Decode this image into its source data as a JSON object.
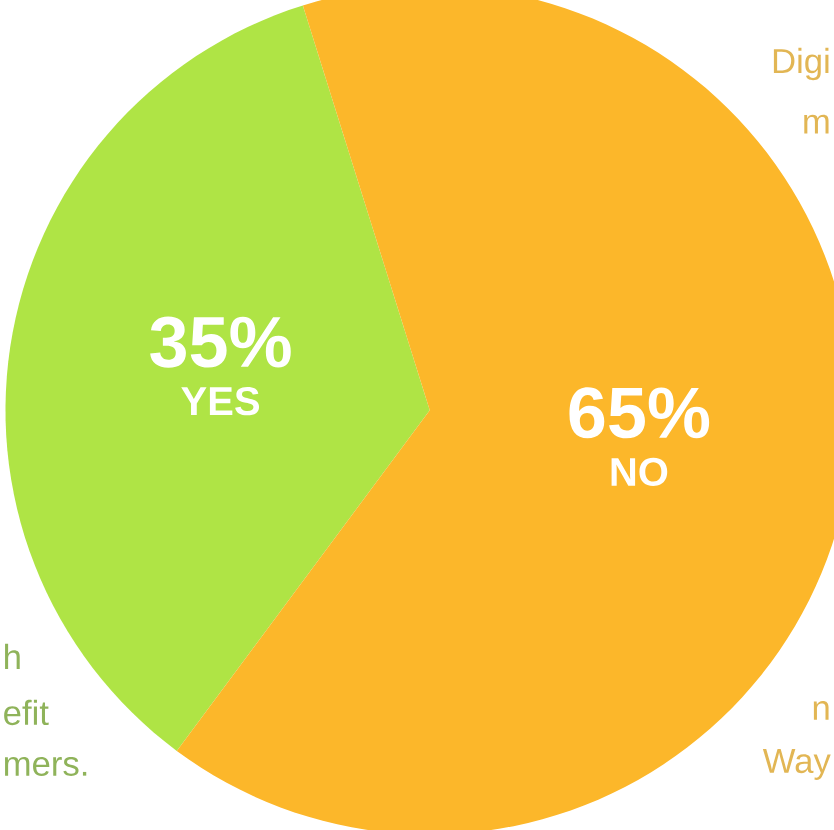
{
  "chart_data": {
    "type": "pie",
    "categories": [
      "YES",
      "NO"
    ],
    "values": [
      35,
      65
    ],
    "colors": [
      "#afe445",
      "#fcb72a"
    ],
    "value_labels": [
      "35%",
      "65%"
    ],
    "annotations": [
      "Digi",
      "m",
      "h",
      "efit",
      "mers.",
      "n",
      "Way"
    ]
  }
}
